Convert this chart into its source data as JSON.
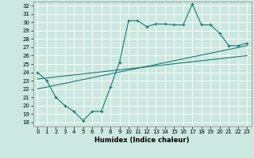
{
  "title": "",
  "xlabel": "Humidex (Indice chaleur)",
  "bg_color": "#cce8e0",
  "grid_color": "#ffffff",
  "line_color": "#1a7a6e",
  "xlim": [
    -0.5,
    23.5
  ],
  "ylim": [
    17.5,
    32.5
  ],
  "xticks": [
    0,
    1,
    2,
    3,
    4,
    5,
    6,
    7,
    8,
    9,
    10,
    11,
    12,
    13,
    14,
    15,
    16,
    17,
    18,
    19,
    20,
    21,
    22,
    23
  ],
  "yticks": [
    18,
    19,
    20,
    21,
    22,
    23,
    24,
    25,
    26,
    27,
    28,
    29,
    30,
    31,
    32
  ],
  "series1_x": [
    0,
    1,
    2,
    3,
    4,
    5,
    6,
    7,
    8,
    9,
    10,
    11,
    12,
    13,
    14,
    15,
    16,
    17,
    18,
    19,
    20,
    21,
    22,
    23
  ],
  "series1_y": [
    24.0,
    23.0,
    21.0,
    20.0,
    19.3,
    18.2,
    19.3,
    19.3,
    22.2,
    25.2,
    30.2,
    30.2,
    29.5,
    29.8,
    29.8,
    29.7,
    29.7,
    32.2,
    29.7,
    29.7,
    28.7,
    27.2,
    27.2,
    27.5
  ],
  "series2_x": [
    0,
    23
  ],
  "series2_y": [
    22.0,
    27.2
  ],
  "series3_x": [
    0,
    23
  ],
  "series3_y": [
    23.2,
    26.0
  ],
  "tick_fontsize": 5.0,
  "xlabel_fontsize": 6.0,
  "linewidth": 0.8,
  "marker_size": 3.0
}
